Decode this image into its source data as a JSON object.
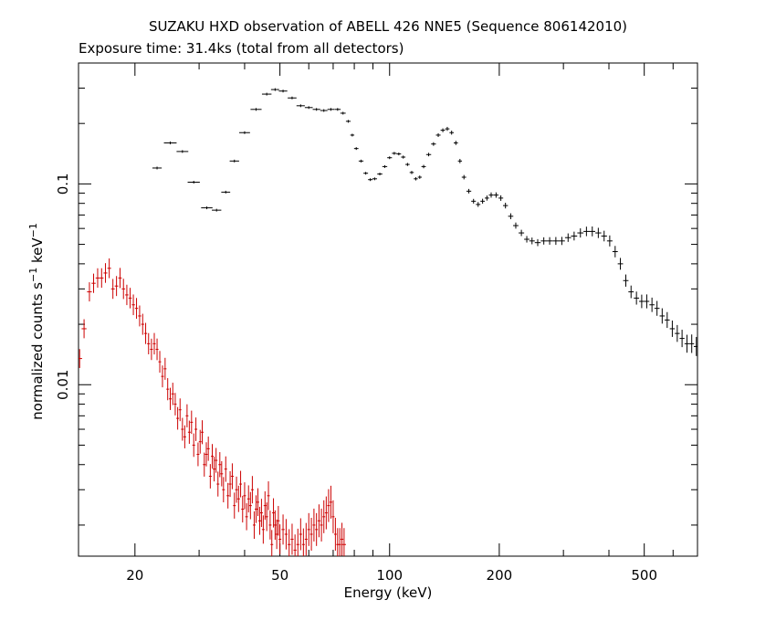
{
  "chart_data": {
    "type": "scatter",
    "title": "SUZAKU HXD observation of ABELL 426 NNE5 (Sequence 806142010)",
    "subtitle": "Exposure time: 31.4ks (total from all detectors)",
    "xlabel": "Energy (keV)",
    "ylabel": {
      "text": "normalized counts s",
      "sup1": "−1",
      "mid": " keV",
      "sup2": "−1"
    },
    "xscale": "log",
    "yscale": "log",
    "xlim": [
      14,
      700
    ],
    "ylim": [
      0.0014,
      0.4
    ],
    "xticks_labeled": [
      {
        "v": 20,
        "label": "20"
      },
      {
        "v": 50,
        "label": "50"
      },
      {
        "v": 100,
        "label": "100"
      },
      {
        "v": 200,
        "label": "200"
      },
      {
        "v": 500,
        "label": "500"
      }
    ],
    "yticks_labeled": [
      {
        "v": 0.1,
        "label": "0.1"
      },
      {
        "v": 0.01,
        "label": "0.01"
      }
    ],
    "series": [
      {
        "color": "#000000",
        "points": [
          [
            23.0,
            0.12
          ],
          [
            25.0,
            0.16
          ],
          [
            27.0,
            0.145
          ],
          [
            29.0,
            0.102
          ],
          [
            31.5,
            0.076
          ],
          [
            33.5,
            0.074
          ],
          [
            35.5,
            0.091
          ],
          [
            37.5,
            0.13
          ],
          [
            40.0,
            0.18
          ],
          [
            43.0,
            0.235
          ],
          [
            46.0,
            0.28
          ],
          [
            48.5,
            0.295
          ],
          [
            51.0,
            0.29
          ],
          [
            54.0,
            0.268
          ],
          [
            57.0,
            0.245
          ],
          [
            60.0,
            0.24
          ],
          [
            63.0,
            0.235
          ],
          [
            66.0,
            0.232
          ],
          [
            69.0,
            0.235
          ],
          [
            72.0,
            0.235
          ],
          [
            74.5,
            0.225
          ],
          [
            77.0,
            0.205
          ],
          [
            79.0,
            0.175
          ],
          [
            81.0,
            0.15
          ],
          [
            83.5,
            0.13
          ],
          [
            86.0,
            0.113
          ],
          [
            88.5,
            0.105
          ],
          [
            91.0,
            0.106
          ],
          [
            94.0,
            0.112
          ],
          [
            97.0,
            0.122
          ],
          [
            100.0,
            0.135
          ],
          [
            103.0,
            0.142
          ],
          [
            106.0,
            0.141
          ],
          [
            109.0,
            0.136
          ],
          [
            112.0,
            0.125
          ],
          [
            115.0,
            0.114
          ],
          [
            118.0,
            0.106
          ],
          [
            121.0,
            0.108
          ],
          [
            124.0,
            0.122
          ],
          [
            128.0,
            0.14
          ],
          [
            132.0,
            0.158
          ],
          [
            136.0,
            0.175
          ],
          [
            140.0,
            0.185
          ],
          [
            144.0,
            0.188
          ],
          [
            148.0,
            0.18
          ],
          [
            152.0,
            0.16
          ],
          [
            156.0,
            0.13
          ],
          [
            160.0,
            0.108
          ],
          [
            165.0,
            0.092
          ],
          [
            170.0,
            0.082
          ],
          [
            175.0,
            0.079
          ],
          [
            180.0,
            0.082
          ],
          [
            185.0,
            0.085
          ],
          [
            190.0,
            0.088
          ],
          [
            196.0,
            0.088
          ],
          [
            202.0,
            0.085
          ],
          [
            208.0,
            0.078
          ],
          [
            215.0,
            0.069
          ],
          [
            222.0,
            0.062
          ],
          [
            230.0,
            0.057
          ],
          [
            238.0,
            0.053
          ],
          [
            246.0,
            0.052
          ],
          [
            255.0,
            0.051
          ],
          [
            265.0,
            0.052
          ],
          [
            275.0,
            0.052
          ],
          [
            286.0,
            0.052
          ],
          [
            297.0,
            0.052
          ],
          [
            309.0,
            0.054
          ],
          [
            321.0,
            0.055
          ],
          [
            334.0,
            0.057
          ],
          [
            347.0,
            0.058
          ],
          [
            360.0,
            0.058
          ],
          [
            374.0,
            0.057
          ],
          [
            388.0,
            0.055
          ],
          [
            402.0,
            0.052
          ],
          [
            416.0,
            0.046
          ],
          [
            430.0,
            0.04
          ],
          [
            445.0,
            0.033
          ],
          [
            460.0,
            0.029
          ],
          [
            476.0,
            0.027
          ],
          [
            492.0,
            0.026
          ],
          [
            508.0,
            0.026
          ],
          [
            525.0,
            0.025
          ],
          [
            542.0,
            0.024
          ],
          [
            560.0,
            0.022
          ],
          [
            578.0,
            0.021
          ],
          [
            597.0,
            0.019
          ],
          [
            616.0,
            0.018
          ],
          [
            635.0,
            0.017
          ],
          [
            655.0,
            0.016
          ],
          [
            675.0,
            0.016
          ],
          [
            695.0,
            0.0155
          ]
        ]
      },
      {
        "color": "#cc0000",
        "points": [
          [
            14.1,
            0.0135
          ],
          [
            14.5,
            0.019
          ],
          [
            15.0,
            0.029
          ],
          [
            15.4,
            0.032
          ],
          [
            15.8,
            0.034
          ],
          [
            16.2,
            0.034
          ],
          [
            16.6,
            0.036
          ],
          [
            17.0,
            0.038
          ],
          [
            17.4,
            0.03
          ],
          [
            17.8,
            0.031
          ],
          [
            18.2,
            0.034
          ],
          [
            18.6,
            0.03
          ],
          [
            19.0,
            0.028
          ],
          [
            19.4,
            0.027
          ],
          [
            19.8,
            0.025
          ],
          [
            20.2,
            0.024
          ],
          [
            20.6,
            0.022
          ],
          [
            21.0,
            0.02
          ],
          [
            21.4,
            0.018
          ],
          [
            21.8,
            0.016
          ],
          [
            22.2,
            0.015
          ],
          [
            22.6,
            0.016
          ],
          [
            23.0,
            0.015
          ],
          [
            23.4,
            0.013
          ],
          [
            23.8,
            0.011
          ],
          [
            24.2,
            0.012
          ],
          [
            24.6,
            0.0095
          ],
          [
            25.0,
            0.0085
          ],
          [
            25.4,
            0.009
          ],
          [
            25.8,
            0.008
          ],
          [
            26.2,
            0.0068
          ],
          [
            26.6,
            0.0075
          ],
          [
            27.0,
            0.006
          ],
          [
            27.4,
            0.0055
          ],
          [
            27.8,
            0.007
          ],
          [
            28.2,
            0.0058
          ],
          [
            28.6,
            0.0065
          ],
          [
            29.0,
            0.005
          ],
          [
            29.4,
            0.006
          ],
          [
            29.8,
            0.0045
          ],
          [
            30.2,
            0.0052
          ],
          [
            30.6,
            0.0058
          ],
          [
            31.0,
            0.004
          ],
          [
            31.4,
            0.0045
          ],
          [
            31.8,
            0.0048
          ],
          [
            32.2,
            0.0035
          ],
          [
            32.6,
            0.0044
          ],
          [
            33.0,
            0.0038
          ],
          [
            33.4,
            0.0042
          ],
          [
            33.8,
            0.0032
          ],
          [
            34.2,
            0.004
          ],
          [
            34.6,
            0.0036
          ],
          [
            35.0,
            0.003
          ],
          [
            35.5,
            0.0038
          ],
          [
            36.0,
            0.0028
          ],
          [
            36.5,
            0.0032
          ],
          [
            37.0,
            0.0035
          ],
          [
            37.5,
            0.0025
          ],
          [
            38.0,
            0.003
          ],
          [
            38.5,
            0.0027
          ],
          [
            39.0,
            0.0032
          ],
          [
            39.5,
            0.0024
          ],
          [
            40.0,
            0.0028
          ],
          [
            40.5,
            0.0022
          ],
          [
            41.0,
            0.0027
          ],
          [
            41.5,
            0.0025
          ],
          [
            42.0,
            0.003
          ],
          [
            42.5,
            0.002
          ],
          [
            43.0,
            0.0024
          ],
          [
            43.5,
            0.0026
          ],
          [
            44.0,
            0.0021
          ],
          [
            44.5,
            0.0023
          ],
          [
            45.0,
            0.0019
          ],
          [
            45.5,
            0.0025
          ],
          [
            46.0,
            0.0022
          ],
          [
            46.5,
            0.0028
          ],
          [
            47.0,
            0.002
          ],
          [
            47.5,
            0.0016
          ],
          [
            48.0,
            0.0023
          ],
          [
            48.5,
            0.002
          ],
          [
            49.0,
            0.0018
          ],
          [
            49.5,
            0.0021
          ],
          [
            50.0,
            0.0017
          ],
          [
            51.0,
            0.0019
          ],
          [
            52.0,
            0.0018
          ],
          [
            53.0,
            0.0016
          ],
          [
            54.0,
            0.0017
          ],
          [
            55.0,
            0.0015
          ],
          [
            56.0,
            0.0016
          ],
          [
            57.0,
            0.0018
          ],
          [
            58.0,
            0.0016
          ],
          [
            59.0,
            0.0017
          ],
          [
            60.0,
            0.0019
          ],
          [
            61.0,
            0.0018
          ],
          [
            62.0,
            0.002
          ],
          [
            63.0,
            0.0019
          ],
          [
            64.0,
            0.0021
          ],
          [
            65.0,
            0.002
          ],
          [
            66.0,
            0.0022
          ],
          [
            67.0,
            0.0023
          ],
          [
            68.0,
            0.0025
          ],
          [
            69.0,
            0.0026
          ],
          [
            70.0,
            0.0022
          ],
          [
            71.0,
            0.0018
          ],
          [
            72.0,
            0.0016
          ],
          [
            73.0,
            0.0016
          ],
          [
            74.0,
            0.0017
          ],
          [
            75.0,
            0.0016
          ]
        ]
      }
    ]
  }
}
